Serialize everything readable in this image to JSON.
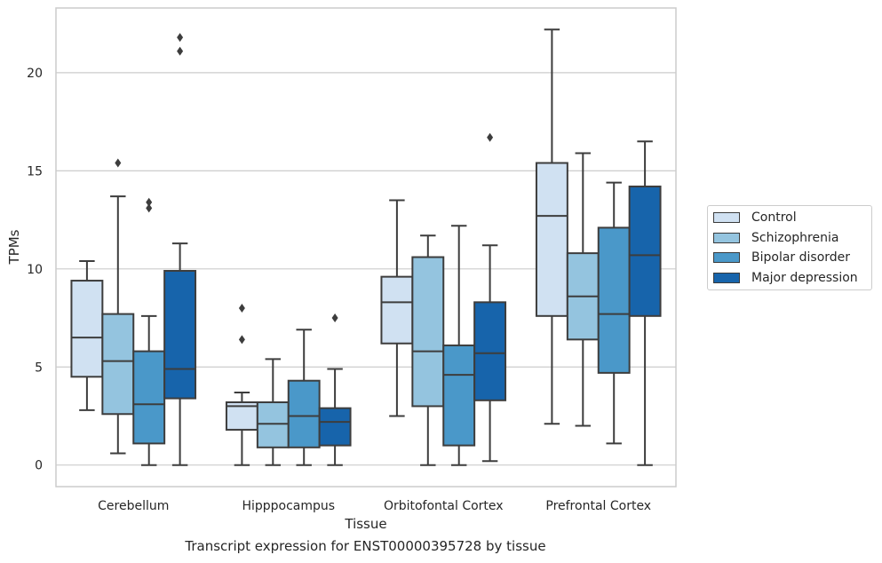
{
  "chart_data": {
    "type": "boxplot",
    "title": "Transcript expression for ENST00000395728 by tissue",
    "xlabel": "Tissue",
    "ylabel": "TPMs",
    "ylim": [
      -1.1,
      23.3
    ],
    "yticks": [
      0,
      5,
      10,
      15,
      20
    ],
    "grid": "horizontal",
    "legend_position": "right",
    "categories": [
      "Cerebellum",
      "Hipppocampus",
      "Orbitofontal Cortex",
      "Prefrontal Cortex"
    ],
    "series": [
      {
        "name": "Control",
        "color": "#d0e1f2",
        "boxes": [
          {
            "whisker_low": 2.8,
            "q1": 4.5,
            "median": 6.5,
            "q3": 9.4,
            "whisker_high": 10.4,
            "outliers": []
          },
          {
            "whisker_low": 0.0,
            "q1": 1.8,
            "median": 3.0,
            "q3": 3.2,
            "whisker_high": 3.7,
            "outliers": [
              6.4,
              8.0
            ]
          },
          {
            "whisker_low": 2.5,
            "q1": 6.2,
            "median": 8.3,
            "q3": 9.6,
            "whisker_high": 13.5,
            "outliers": []
          },
          {
            "whisker_low": 2.1,
            "q1": 7.6,
            "median": 12.7,
            "q3": 15.4,
            "whisker_high": 22.2,
            "outliers": []
          }
        ]
      },
      {
        "name": "Schizophrenia",
        "color": "#94c4df",
        "boxes": [
          {
            "whisker_low": 0.6,
            "q1": 2.6,
            "median": 5.3,
            "q3": 7.7,
            "whisker_high": 13.7,
            "outliers": [
              15.4
            ]
          },
          {
            "whisker_low": 0.0,
            "q1": 0.9,
            "median": 2.1,
            "q3": 3.2,
            "whisker_high": 5.4,
            "outliers": []
          },
          {
            "whisker_low": 0.0,
            "q1": 3.0,
            "median": 5.8,
            "q3": 10.6,
            "whisker_high": 11.7,
            "outliers": []
          },
          {
            "whisker_low": 2.0,
            "q1": 6.4,
            "median": 8.6,
            "q3": 10.8,
            "whisker_high": 15.9,
            "outliers": []
          }
        ]
      },
      {
        "name": "Bipolar disorder",
        "color": "#4a98c9",
        "boxes": [
          {
            "whisker_low": 0.0,
            "q1": 1.1,
            "median": 3.1,
            "q3": 5.8,
            "whisker_high": 7.6,
            "outliers": [
              13.1,
              13.4
            ]
          },
          {
            "whisker_low": 0.0,
            "q1": 0.9,
            "median": 2.5,
            "q3": 4.3,
            "whisker_high": 6.9,
            "outliers": []
          },
          {
            "whisker_low": 0.0,
            "q1": 1.0,
            "median": 4.6,
            "q3": 6.1,
            "whisker_high": 12.2,
            "outliers": []
          },
          {
            "whisker_low": 1.1,
            "q1": 4.7,
            "median": 7.7,
            "q3": 12.1,
            "whisker_high": 14.4,
            "outliers": []
          }
        ]
      },
      {
        "name": "Major depression",
        "color": "#1764ab",
        "boxes": [
          {
            "whisker_low": 0.0,
            "q1": 3.4,
            "median": 4.9,
            "q3": 9.9,
            "whisker_high": 11.3,
            "outliers": [
              21.1,
              21.8
            ]
          },
          {
            "whisker_low": 0.0,
            "q1": 1.0,
            "median": 2.2,
            "q3": 2.9,
            "whisker_high": 4.9,
            "outliers": [
              7.5
            ]
          },
          {
            "whisker_low": 0.2,
            "q1": 3.3,
            "median": 5.7,
            "q3": 8.3,
            "whisker_high": 11.2,
            "outliers": [
              16.7
            ]
          },
          {
            "whisker_low": 0.0,
            "q1": 7.6,
            "median": 10.7,
            "q3": 14.2,
            "whisker_high": 16.5,
            "outliers": []
          }
        ]
      }
    ]
  }
}
